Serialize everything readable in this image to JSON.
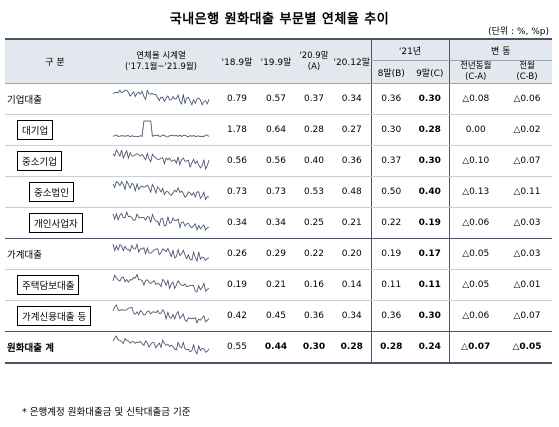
{
  "title": "국내은행 원화대출 부문별 연체율 추이",
  "unit": "(단위 : %, %p)",
  "headers": {
    "category": "구 분",
    "trend_title": "연체율 시계열",
    "trend_range": "('17.1월~'21.9월)",
    "col_189": "'18.9말",
    "col_199": "'19.9말",
    "col_209": "'20.9말",
    "col_209_sub": "(A)",
    "col_2012": "'20.12말",
    "col_21": "'21년",
    "col_aug": "8말(B)",
    "col_sep": "9말(C)",
    "col_change": "변 동",
    "col_yoy": "전년동월",
    "col_yoy_sub": "(C-A)",
    "col_mom": "전월",
    "col_mom_sub": "(C-B)"
  },
  "rows": [
    {
      "label": "기업대출",
      "v189": "0.79",
      "v199": "0.57",
      "v209": "0.37",
      "v2012": "0.34",
      "aug": "0.36",
      "sep": "0.30",
      "yoy": "△0.08",
      "mom": "△0.06"
    },
    {
      "label": "대기업",
      "v189": "1.78",
      "v199": "0.64",
      "v209": "0.28",
      "v2012": "0.27",
      "aug": "0.30",
      "sep": "0.28",
      "yoy": "0.00",
      "mom": "△0.02"
    },
    {
      "label": "중소기업",
      "v189": "0.56",
      "v199": "0.56",
      "v209": "0.40",
      "v2012": "0.36",
      "aug": "0.37",
      "sep": "0.30",
      "yoy": "△0.10",
      "mom": "△0.07"
    },
    {
      "label": "중소법인",
      "v189": "0.73",
      "v199": "0.73",
      "v209": "0.53",
      "v2012": "0.48",
      "aug": "0.50",
      "sep": "0.40",
      "yoy": "△0.13",
      "mom": "△0.11"
    },
    {
      "label": "개인사업자",
      "v189": "0.34",
      "v199": "0.34",
      "v209": "0.25",
      "v2012": "0.21",
      "aug": "0.22",
      "sep": "0.19",
      "yoy": "△0.06",
      "mom": "△0.03"
    },
    {
      "label": "가계대출",
      "v189": "0.26",
      "v199": "0.29",
      "v209": "0.22",
      "v2012": "0.20",
      "aug": "0.19",
      "sep": "0.17",
      "yoy": "△0.05",
      "mom": "△0.03"
    },
    {
      "label": "주택담보대출",
      "v189": "0.19",
      "v199": "0.21",
      "v209": "0.16",
      "v2012": "0.14",
      "aug": "0.11",
      "sep": "0.11",
      "yoy": "△0.05",
      "mom": "△0.01"
    },
    {
      "label": "가계신용대출 등",
      "v189": "0.42",
      "v199": "0.45",
      "v209": "0.36",
      "v2012": "0.34",
      "aug": "0.36",
      "sep": "0.30",
      "yoy": "△0.06",
      "mom": "△0.07"
    },
    {
      "label": "원화대출 계",
      "v189": "0.55",
      "v199": "0.44",
      "v209": "0.30",
      "v2012": "0.28",
      "aug": "0.28",
      "sep": "0.24",
      "yoy": "△0.07",
      "mom": "△0.05"
    }
  ],
  "footnote": "* 은행계정 원화대출금 및 신탁대출금 기준"
}
